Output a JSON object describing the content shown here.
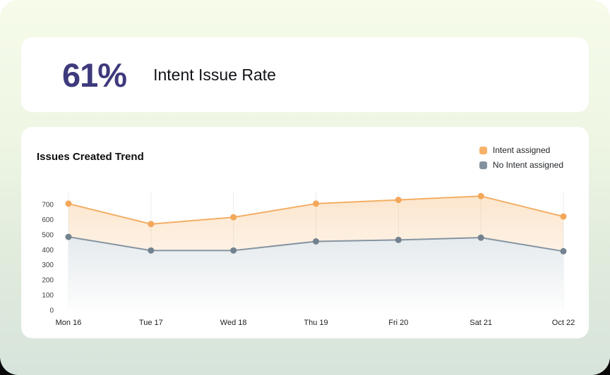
{
  "stat_card": {
    "value": "61%",
    "label": "Intent Issue Rate",
    "value_color": "#3e3a7c"
  },
  "trend_card": {
    "title": "Issues Created Trend",
    "legend": [
      {
        "label": "Intent assigned",
        "color": "#f6b269"
      },
      {
        "label": "No Intent assigned",
        "color": "#8492a0"
      }
    ]
  },
  "chart_data": {
    "type": "area",
    "title": "Issues Created Trend",
    "categories": [
      "Mon 16",
      "Tue 17",
      "Wed 18",
      "Thu 19",
      "Fri 20",
      "Sat 21",
      "Oct 22"
    ],
    "series": [
      {
        "name": "Intent assigned",
        "color": "#f3ae64",
        "dot_color": "#f3a75a",
        "fill_top": "rgba(246,171,88,0.30)",
        "fill_bottom": "rgba(246,171,88,0)",
        "values": [
          705,
          570,
          615,
          705,
          730,
          755,
          620
        ]
      },
      {
        "name": "No Intent assigned",
        "color": "#8694a1",
        "dot_color": "#73828e",
        "fill_top": "rgb(227,233,236)",
        "fill_bottom": "rgb(254,254,254)",
        "values": [
          485,
          395,
          395,
          455,
          465,
          480,
          390
        ]
      }
    ],
    "ylim": [
      0,
      700
    ],
    "yticks": [
      0,
      100,
      200,
      300,
      400,
      500,
      600,
      700
    ],
    "grid": "vertical-only",
    "legend_position": "top-right",
    "axis_text_color": "#3c4043",
    "grid_color": "#e9edf0"
  }
}
